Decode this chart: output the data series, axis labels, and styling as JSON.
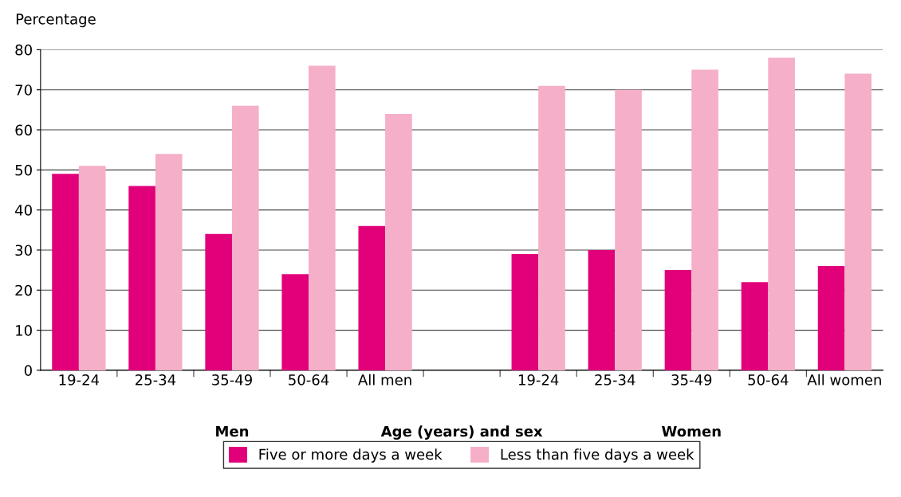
{
  "chart_data": {
    "type": "bar",
    "ylabel": "Percentage",
    "xlabel": "Age (years) and sex",
    "categories": [
      "19-24",
      "25-34",
      "35-49",
      "50-64",
      "All men",
      null,
      "19-24",
      "25-34",
      "35-49",
      "50-64",
      "All women"
    ],
    "series": [
      {
        "name": "Five or more days a week",
        "color": "#e2007a",
        "values": [
          49,
          46,
          34,
          24,
          36,
          null,
          29,
          30,
          25,
          22,
          26
        ]
      },
      {
        "name": "Less than five days a week",
        "color": "#f5afc8",
        "values": [
          51,
          54,
          66,
          76,
          64,
          null,
          71,
          70,
          75,
          78,
          74
        ]
      }
    ],
    "annotations": [
      "Men",
      "Women"
    ],
    "ylim": [
      0,
      80
    ],
    "yticks": [
      0,
      10,
      20,
      30,
      40,
      50,
      60,
      70,
      80
    ],
    "grid": "y",
    "legend": "bottom"
  }
}
